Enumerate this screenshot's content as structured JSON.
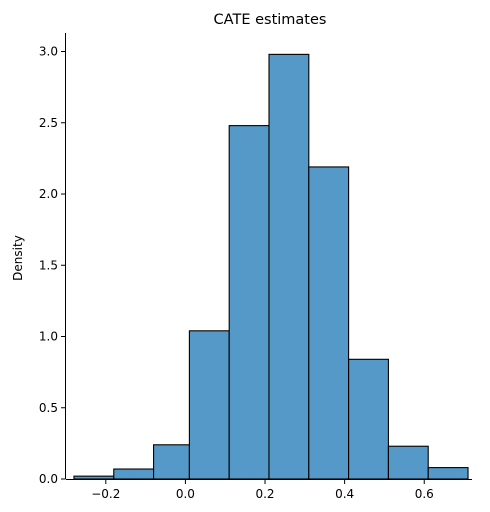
{
  "chart_data": {
    "type": "bar",
    "title": "CATE estimates",
    "xlabel": "",
    "ylabel": "Density",
    "xlim": [
      -0.3,
      0.72
    ],
    "ylim": [
      0,
      3.13
    ],
    "grid": false,
    "x_ticks": [
      -0.2,
      0.0,
      0.2,
      0.4,
      0.6
    ],
    "x_tick_labels": [
      "−0.2",
      "0.0",
      "0.2",
      "0.4",
      "0.6"
    ],
    "y_ticks": [
      0.0,
      0.5,
      1.0,
      1.5,
      2.0,
      2.5,
      3.0
    ],
    "y_tick_labels": [
      "0.0",
      "0.5",
      "1.0",
      "1.5",
      "2.0",
      "2.5",
      "3.0"
    ],
    "bins": [
      {
        "x0": -0.28,
        "x1": -0.18,
        "density": 0.02
      },
      {
        "x0": -0.18,
        "x1": -0.08,
        "density": 0.07
      },
      {
        "x0": -0.08,
        "x1": 0.01,
        "density": 0.24
      },
      {
        "x0": 0.01,
        "x1": 0.11,
        "density": 1.04
      },
      {
        "x0": 0.11,
        "x1": 0.21,
        "density": 2.48
      },
      {
        "x0": 0.21,
        "x1": 0.31,
        "density": 2.98
      },
      {
        "x0": 0.31,
        "x1": 0.41,
        "density": 2.19
      },
      {
        "x0": 0.41,
        "x1": 0.51,
        "density": 0.84
      },
      {
        "x0": 0.51,
        "x1": 0.61,
        "density": 0.23
      },
      {
        "x0": 0.61,
        "x1": 0.71,
        "density": 0.08
      }
    ],
    "colors": {
      "bar": "#5599c8",
      "edge": "#000000"
    }
  }
}
